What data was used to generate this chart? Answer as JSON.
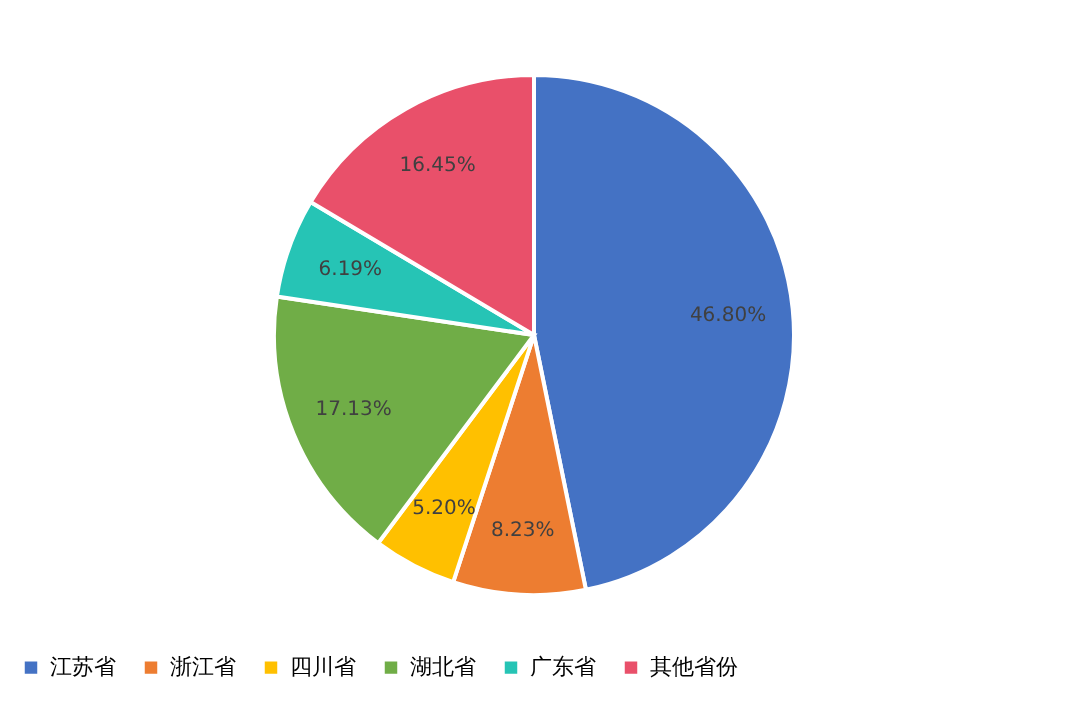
{
  "chart_data": {
    "type": "pie",
    "categories": [
      "江苏省",
      "浙江省",
      "四川省",
      "湖北省",
      "广东省",
      "其他省份"
    ],
    "values": [
      46.8,
      8.23,
      5.2,
      17.13,
      6.19,
      16.45
    ],
    "value_labels": [
      "46.80%",
      "8.23%",
      "5.20%",
      "17.13%",
      "6.19%",
      "16.45%"
    ],
    "colors": [
      "#4472c4",
      "#ed7d31",
      "#ffc000",
      "#70ad47",
      "#26c4b5",
      "#e9506a"
    ],
    "legend": "bottom"
  }
}
